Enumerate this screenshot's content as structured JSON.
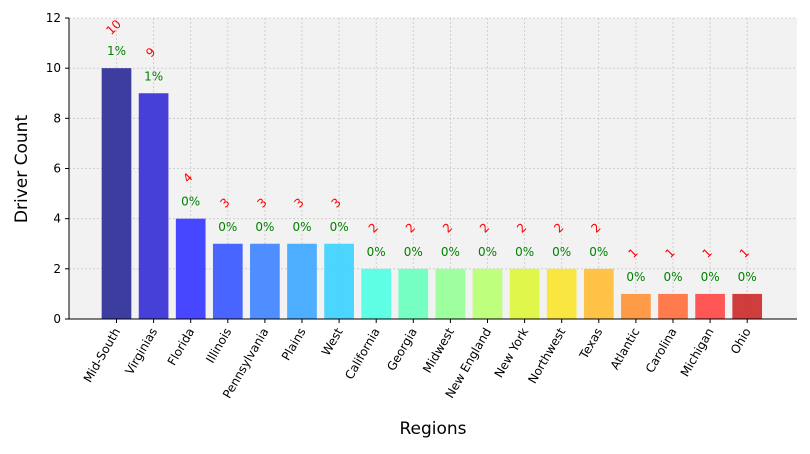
{
  "chart_data": {
    "type": "bar",
    "xlabel": "Regions",
    "ylabel": "Driver Count",
    "ylim": [
      0,
      12
    ],
    "yticks": [
      0,
      2,
      4,
      6,
      8,
      10,
      12
    ],
    "grid": true,
    "categories": [
      "Mid-South",
      "Virginias",
      "Florida",
      "Illinois",
      "Pennsylvania",
      "Plains",
      "West",
      "California",
      "Georgia",
      "Midwest",
      "New England",
      "New York",
      "Northwest",
      "Texas",
      "Atlantic",
      "Carolina",
      "Michigan",
      "Ohio"
    ],
    "values": [
      10,
      9,
      4,
      3,
      3,
      3,
      3,
      2,
      2,
      2,
      2,
      2,
      2,
      2,
      1,
      1,
      1,
      1
    ],
    "value_labels": [
      "10",
      "9",
      "4",
      "3",
      "3",
      "3",
      "3",
      "2",
      "2",
      "2",
      "2",
      "2",
      "2",
      "2",
      "1",
      "1",
      "1",
      "1"
    ],
    "percent_labels": [
      "1%",
      "1%",
      "0%",
      "0%",
      "0%",
      "0%",
      "0%",
      "0%",
      "0%",
      "0%",
      "0%",
      "0%",
      "0%",
      "0%",
      "0%",
      "0%",
      "0%",
      "0%"
    ],
    "bar_colors": [
      "#33339a",
      "#3c35d6",
      "#3d3dff",
      "#3f5dff",
      "#4488ff",
      "#44aaff",
      "#42d4ff",
      "#55ffe3",
      "#6effc0",
      "#98ff98",
      "#bbff77",
      "#dff540",
      "#f9e536",
      "#fdbf3c",
      "#fe963d",
      "#ff7444",
      "#ff4d4d",
      "#cc3333"
    ],
    "value_label_color": "#ff0000",
    "percent_label_color": "#008000",
    "plot_background": "#f2f2f2",
    "grid_color": "#c8c8c8"
  }
}
